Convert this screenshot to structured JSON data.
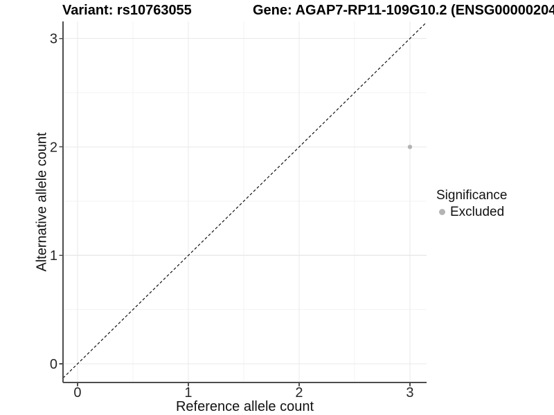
{
  "titles": {
    "variant": "Variant: rs10763055",
    "gene": "Gene: AGAP7-RP11-109G10.2 (ENSG00000204"
  },
  "axes": {
    "x_label": "Reference allele count",
    "y_label": "Alternative allele count"
  },
  "legend": {
    "title": "Significance",
    "items": [
      {
        "label": "Excluded",
        "color": "#b4b4b4"
      }
    ]
  },
  "chart_data": {
    "type": "scatter",
    "xlabel": "Reference allele count",
    "ylabel": "Alternative allele count",
    "xlim": [
      -0.131,
      3.15
    ],
    "ylim": [
      -0.172,
      3.157
    ],
    "xticks": [
      0,
      1,
      2,
      3
    ],
    "yticks": [
      0,
      1,
      2,
      3
    ],
    "minor_ticks_x": [
      0.5,
      1.5,
      2.5
    ],
    "minor_ticks_y": [
      0.5,
      1.5,
      2.5
    ],
    "grid": true,
    "legend_position": "right",
    "series": [
      {
        "name": "Excluded",
        "color": "#b4b4b4",
        "points": [
          {
            "x": 3,
            "y": 2
          }
        ]
      }
    ],
    "reference_line": {
      "type": "identity",
      "style": "dashed",
      "color": "#111111"
    }
  },
  "style": {
    "background": "#ffffff",
    "grid_major": "#e9e9e9",
    "grid_minor": "#f3f3f3",
    "axis_line": "#4d4d4d",
    "tick_label": "#262626",
    "point": "#b4b4b4",
    "ref_line": "#111111"
  }
}
